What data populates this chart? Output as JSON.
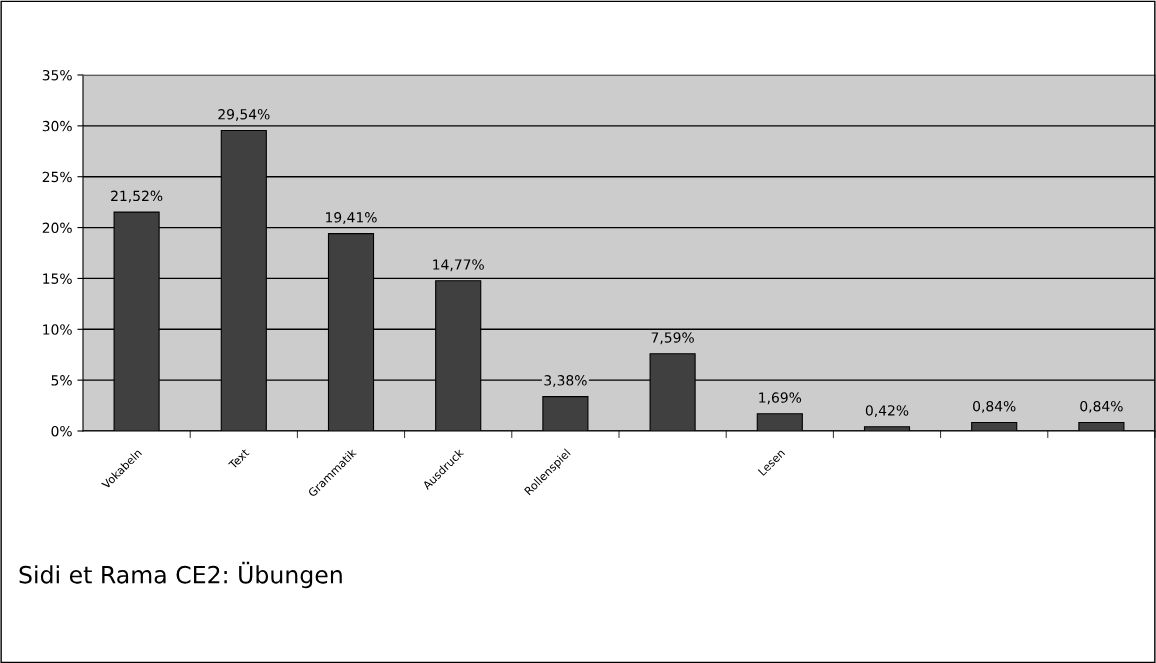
{
  "chart_data": {
    "type": "bar",
    "categories": [
      "Vokabeln",
      "Text",
      "Grammatik",
      "Ausdruck",
      "Rollenspiel",
      null,
      "Lesen",
      null,
      null,
      null
    ],
    "values": [
      21.52,
      29.54,
      19.41,
      14.77,
      3.38,
      7.59,
      1.69,
      0.42,
      0.84,
      0.84
    ],
    "value_labels": [
      "21,52%",
      "29,54%",
      "19,41%",
      "14,77%",
      "3,38%",
      "7,59%",
      "1,69%",
      "0,42%",
      "0,84%",
      "0,84%"
    ],
    "color": "#404040",
    "ylim": [
      0,
      35
    ],
    "yticks": [
      {
        "value": 0,
        "label": "0%"
      },
      {
        "value": 5,
        "label": "5%"
      },
      {
        "value": 10,
        "label": "10%"
      },
      {
        "value": 15,
        "label": "15%"
      },
      {
        "value": 20,
        "label": "20%"
      },
      {
        "value": 25,
        "label": "25%"
      },
      {
        "value": 30,
        "label": "30%"
      },
      {
        "value": 35,
        "label": "35%"
      }
    ],
    "grid": "y",
    "legend": false,
    "annotations": [
      "Sidi et Rama CE2: Übungen"
    ]
  }
}
